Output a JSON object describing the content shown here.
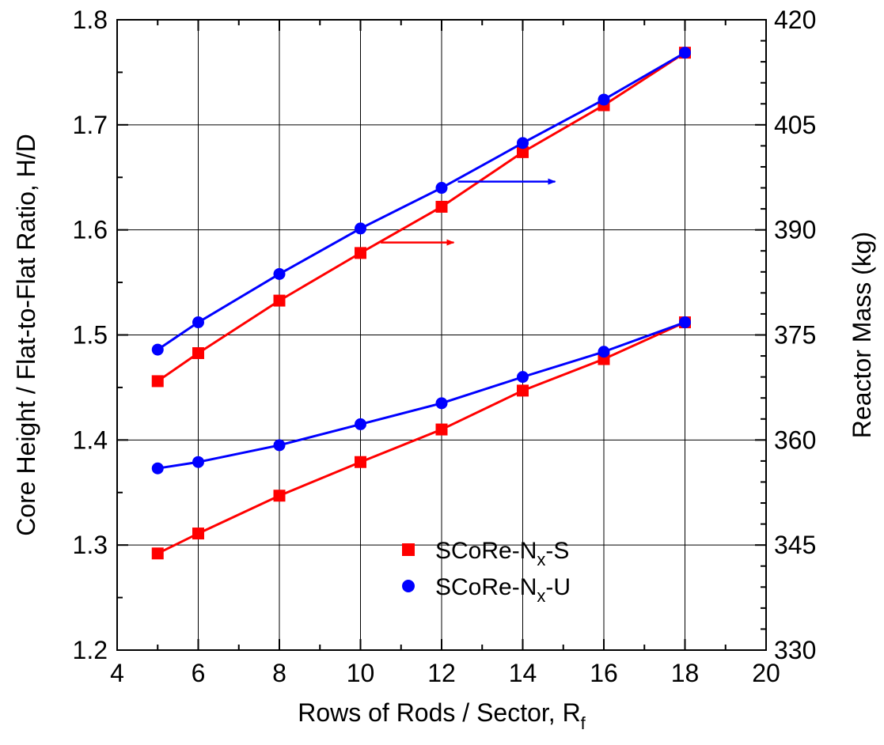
{
  "chart_data": {
    "type": "line",
    "xlabel": "Rows of Rods / Sector, R",
    "xlabel_sub": "f",
    "ylabel_left": "Core Height / Flat-to-Flat Ratio, H/D",
    "ylabel_right": "Reactor Mass (kg)",
    "xlim": [
      4,
      20
    ],
    "ylim_left": [
      1.2,
      1.8
    ],
    "ylim_right": [
      330,
      420
    ],
    "x_ticks": [
      "4",
      "6",
      "8",
      "10",
      "12",
      "14",
      "16",
      "18",
      "20"
    ],
    "y_ticks_left": [
      "1.2",
      "1.3",
      "1.4",
      "1.5",
      "1.6",
      "1.7",
      "1.8"
    ],
    "y_ticks_right": [
      "330",
      "345",
      "360",
      "375",
      "390",
      "405",
      "420"
    ],
    "grid": true,
    "legend_position": "bottom-center",
    "legend": [
      {
        "prefix": "SCoRe-N",
        "sub": "x",
        "suffix": "-S",
        "marker": "square",
        "color": "#ff0000"
      },
      {
        "prefix": "SCoRe-N",
        "sub": "x",
        "suffix": "-U",
        "marker": "circle",
        "color": "#0000ff"
      }
    ],
    "series": [
      {
        "variant": "S",
        "axis": "right",
        "color": "#ff0000",
        "marker": "square",
        "x": [
          5,
          6,
          8,
          10,
          12,
          14,
          16,
          18
        ],
        "y": [
          368.4,
          372.4,
          379.9,
          386.7,
          393.3,
          401.1,
          407.8,
          415.3
        ]
      },
      {
        "variant": "U",
        "axis": "right",
        "color": "#0000ff",
        "marker": "circle",
        "x": [
          5,
          6,
          8,
          10,
          12,
          14,
          16,
          18
        ],
        "y": [
          372.9,
          376.8,
          383.7,
          390.2,
          396.0,
          402.4,
          408.6,
          415.3
        ]
      },
      {
        "variant": "S",
        "axis": "left",
        "color": "#ff0000",
        "marker": "square",
        "x": [
          5,
          6,
          8,
          10,
          12,
          14,
          16,
          18
        ],
        "y": [
          1.292,
          1.311,
          1.347,
          1.379,
          1.41,
          1.447,
          1.477,
          1.512
        ]
      },
      {
        "variant": "U",
        "axis": "left",
        "color": "#0000ff",
        "marker": "circle",
        "x": [
          5,
          6,
          8,
          10,
          12,
          14,
          16,
          18
        ],
        "y": [
          1.373,
          1.379,
          1.395,
          1.415,
          1.435,
          1.46,
          1.484,
          1.512
        ]
      }
    ],
    "annotations": [
      {
        "type": "arrow",
        "direction": "right",
        "points_to": "right-axis",
        "color": "#ff0000",
        "x_from": 10.5,
        "x_to": 12.3,
        "y_left": 1.588
      },
      {
        "type": "arrow",
        "direction": "right",
        "points_to": "right-axis",
        "color": "#0000ff",
        "x_from": 12.4,
        "x_to": 14.8,
        "y_left": 1.646
      }
    ]
  }
}
